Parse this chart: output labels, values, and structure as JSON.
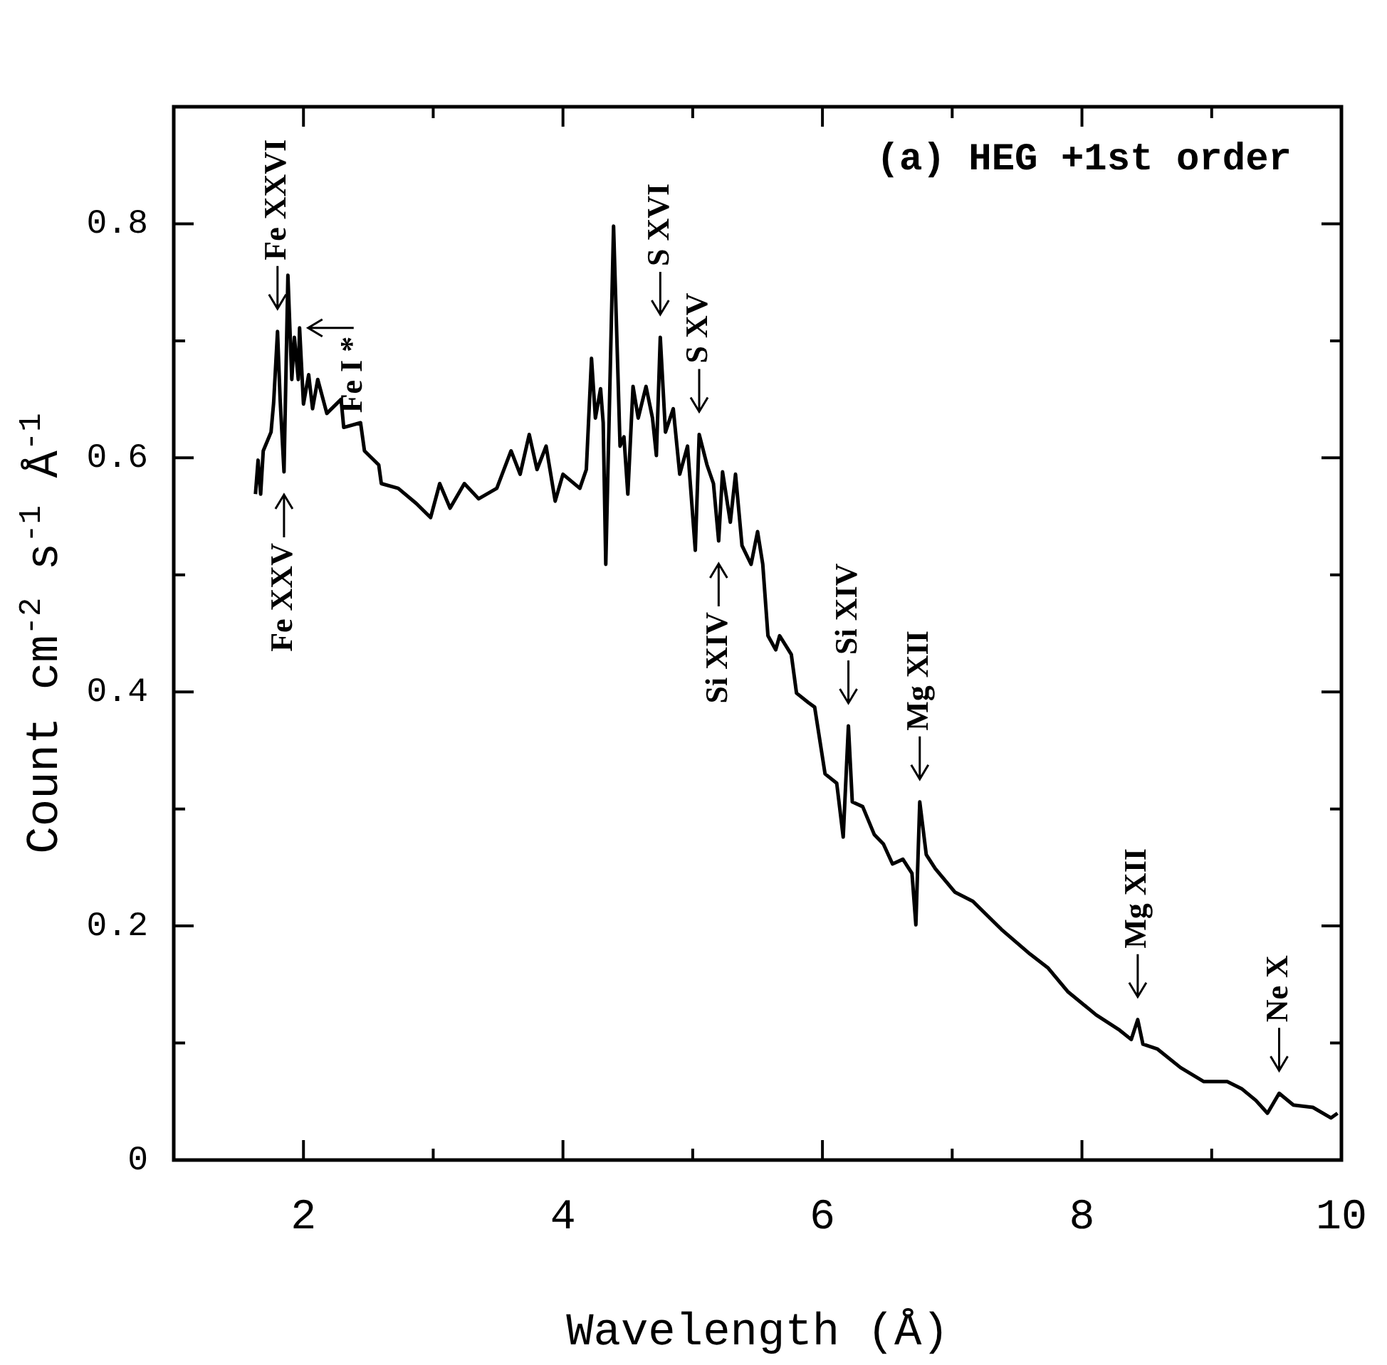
{
  "chart_data": {
    "type": "line",
    "xlabel": "Wavelength (Å)",
    "ylabel": "Count cm$^{-2}$ s$^{-1}$ Å$^{-1}$",
    "xlim": [
      1,
      10
    ],
    "ylim": [
      0,
      0.9
    ],
    "xticks": [
      {
        "value": 1,
        "label": null
      },
      2,
      {
        "value": 3,
        "label": null
      },
      4,
      {
        "value": 5,
        "label": null
      },
      6,
      {
        "value": 7,
        "label": null
      },
      8,
      {
        "value": 9,
        "label": null
      },
      10
    ],
    "yticks": [
      0,
      {
        "value": 0.1,
        "label": null
      },
      0.2,
      {
        "value": 0.3,
        "label": null
      },
      0.4,
      {
        "value": 0.5,
        "label": null
      },
      0.6,
      {
        "value": 0.7,
        "label": null
      },
      0.8,
      {
        "value": 0.9,
        "label": null
      }
    ],
    "grid": false,
    "legend": false,
    "marker": "none",
    "line_style": "solid",
    "series": [
      {
        "color": "#000000",
        "x": [
          1.63,
          1.65,
          1.67,
          1.69,
          1.75,
          1.77,
          1.8,
          1.82,
          1.85,
          1.88,
          1.91,
          1.93,
          1.96,
          1.97,
          2.0,
          2.04,
          2.07,
          2.11,
          2.18,
          2.29,
          2.31,
          2.44,
          2.47,
          2.58,
          2.6,
          2.73,
          2.87,
          2.98,
          3.05,
          3.13,
          3.24,
          3.35,
          3.49,
          3.6,
          3.67,
          3.74,
          3.8,
          3.87,
          3.94,
          4.0,
          4.13,
          4.18,
          4.22,
          4.25,
          4.29,
          4.31,
          4.33,
          4.39,
          4.44,
          4.47,
          4.5,
          4.54,
          4.58,
          4.64,
          4.69,
          4.72,
          4.75,
          4.79,
          4.85,
          4.9,
          4.96,
          5.02,
          5.05,
          5.11,
          5.16,
          5.2,
          5.23,
          5.29,
          5.33,
          5.38,
          5.45,
          5.5,
          5.54,
          5.58,
          5.64,
          5.67,
          5.76,
          5.8,
          5.89,
          5.94,
          6.02,
          6.11,
          6.16,
          6.2,
          6.23,
          6.31,
          6.4,
          6.47,
          6.54,
          6.62,
          6.69,
          6.72,
          6.75,
          6.8,
          6.87,
          7.02,
          7.16,
          7.38,
          7.6,
          7.74,
          7.89,
          8.11,
          8.29,
          8.38,
          8.43,
          8.47,
          8.58,
          8.76,
          8.94,
          9.12,
          9.23,
          9.34,
          9.43,
          9.52,
          9.63,
          9.78,
          9.92,
          9.97
        ],
        "values": [
          0.569,
          0.598,
          0.569,
          0.606,
          0.622,
          0.647,
          0.708,
          0.65,
          0.588,
          0.756,
          0.667,
          0.703,
          0.667,
          0.711,
          0.646,
          0.671,
          0.642,
          0.667,
          0.638,
          0.65,
          0.626,
          0.63,
          0.606,
          0.594,
          0.578,
          0.574,
          0.561,
          0.549,
          0.578,
          0.557,
          0.578,
          0.565,
          0.574,
          0.606,
          0.586,
          0.62,
          0.59,
          0.61,
          0.563,
          0.586,
          0.574,
          0.59,
          0.685,
          0.634,
          0.659,
          0.63,
          0.509,
          0.798,
          0.61,
          0.618,
          0.569,
          0.661,
          0.634,
          0.661,
          0.634,
          0.602,
          0.703,
          0.622,
          0.642,
          0.586,
          0.61,
          0.521,
          0.62,
          0.594,
          0.578,
          0.529,
          0.588,
          0.545,
          0.586,
          0.525,
          0.509,
          0.537,
          0.509,
          0.448,
          0.436,
          0.448,
          0.432,
          0.399,
          0.391,
          0.387,
          0.33,
          0.322,
          0.276,
          0.371,
          0.306,
          0.302,
          0.278,
          0.27,
          0.253,
          0.257,
          0.245,
          0.201,
          0.306,
          0.261,
          0.249,
          0.229,
          0.221,
          0.197,
          0.176,
          0.164,
          0.144,
          0.124,
          0.111,
          0.103,
          0.12,
          0.099,
          0.095,
          0.079,
          0.067,
          0.067,
          0.061,
          0.051,
          0.04,
          0.057,
          0.047,
          0.045,
          0.036,
          0.04
        ]
      }
    ],
    "annotations": [
      "(a) HEG +1st order",
      {
        "text": "Fe XXVI",
        "x": 1.8,
        "y": 0.708
      },
      {
        "text": "Fe I *",
        "x": 1.97,
        "y": 0.711
      },
      {
        "text": "Fe XXV",
        "x": 1.85,
        "y": 0.588
      },
      {
        "text": "S XVI",
        "x": 4.75,
        "y": 0.703
      },
      {
        "text": "S XV",
        "x": 5.05,
        "y": 0.62
      },
      {
        "text": "Si XIV",
        "x": 5.2,
        "y": 0.529
      },
      {
        "text": "Si XIV",
        "x": 6.2,
        "y": 0.371
      },
      {
        "text": "Mg XII",
        "x": 6.75,
        "y": 0.306
      },
      {
        "text": "Mg XII",
        "x": 8.43,
        "y": 0.12
      },
      {
        "text": "Ne X",
        "x": 9.52,
        "y": 0.057
      }
    ]
  }
}
